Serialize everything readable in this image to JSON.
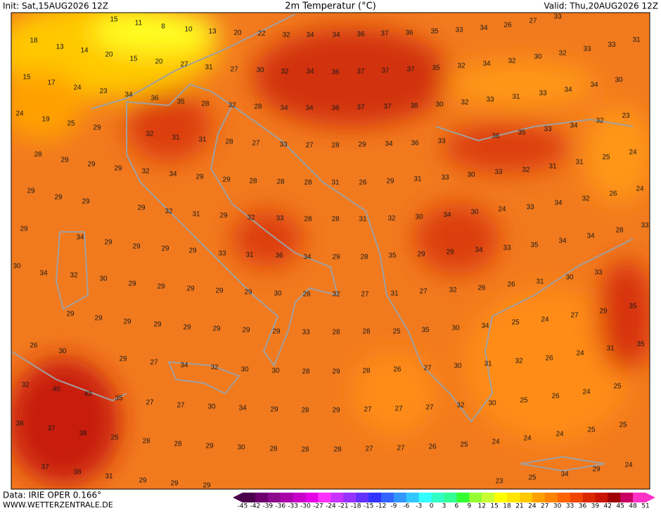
{
  "header": {
    "init": "Init: Sat,15AUG2026 12Z",
    "title": "2m Temperatur (°C)",
    "valid": "Valid: Thu,20AUG2026 12Z"
  },
  "map": {
    "labels": [
      15,
      11,
      8,
      10,
      13,
      20,
      22,
      32,
      34,
      34,
      36,
      37,
      36,
      35,
      33,
      34,
      26,
      27,
      33,
      18,
      13,
      14,
      20,
      15,
      20,
      27,
      31,
      27,
      30,
      32,
      34,
      36,
      37,
      37,
      37,
      35,
      32,
      34,
      32,
      30,
      32,
      33,
      33,
      31,
      15,
      17,
      24,
      23,
      34,
      36,
      35,
      28,
      32,
      28,
      34,
      34,
      36,
      37,
      37,
      38,
      30,
      32,
      33,
      31,
      33,
      34,
      34,
      30,
      24,
      19,
      25,
      29,
      32,
      31,
      31,
      28,
      27,
      33,
      27,
      28,
      29,
      34,
      36,
      33,
      36,
      35,
      33,
      34,
      32,
      23,
      28,
      29,
      29,
      29,
      32,
      34,
      29,
      29,
      28,
      28,
      28,
      31,
      26,
      29,
      31,
      33,
      30,
      33,
      32,
      31,
      31,
      25,
      24,
      29,
      29,
      29,
      29,
      32,
      31,
      29,
      32,
      33,
      28,
      28,
      31,
      32,
      30,
      34,
      30,
      24,
      33,
      34,
      32,
      26,
      24,
      29,
      34,
      29,
      29,
      29,
      29,
      33,
      31,
      36,
      34,
      29,
      28,
      35,
      29,
      29,
      34,
      33,
      35,
      34,
      34,
      28,
      33,
      30,
      34,
      32,
      30,
      29,
      29,
      29,
      29,
      29,
      30,
      28,
      32,
      27,
      31,
      27,
      32,
      26,
      26,
      31,
      30,
      33,
      29,
      29,
      29,
      29,
      29,
      29,
      29,
      29,
      33,
      28,
      28,
      25,
      35,
      30,
      34,
      25,
      24,
      27,
      29,
      35,
      26,
      30,
      29,
      27,
      34,
      32,
      30,
      30,
      28,
      29,
      28,
      26,
      27,
      30,
      31,
      32,
      26,
      24,
      31,
      35,
      32,
      40,
      43,
      35,
      27,
      27,
      30,
      34,
      29,
      28,
      29,
      27,
      27,
      27,
      32,
      30,
      25,
      26,
      24,
      25,
      38,
      37,
      38,
      25,
      28,
      28,
      29,
      30,
      28,
      28,
      28,
      27,
      27,
      26,
      25,
      24,
      24,
      24,
      25,
      25,
      37,
      38,
      31,
      29,
      29,
      29,
      23,
      25,
      34,
      29,
      24
    ]
  },
  "colorbar": {
    "ticks": [
      -45,
      -42,
      -39,
      -36,
      -33,
      -30,
      -27,
      -24,
      -21,
      -18,
      -15,
      -12,
      -9,
      -6,
      -3,
      0,
      3,
      6,
      9,
      12,
      15,
      18,
      21,
      24,
      27,
      30,
      33,
      36,
      39,
      42,
      45,
      48,
      51
    ],
    "colors": [
      "#4b004b",
      "#6e006e",
      "#8c0a8c",
      "#aa00aa",
      "#c800c8",
      "#e600e6",
      "#ff32ff",
      "#c832ff",
      "#9632ff",
      "#6432ff",
      "#3232ff",
      "#3264ff",
      "#3296ff",
      "#32c8ff",
      "#32ffff",
      "#32ffc8",
      "#32ff96",
      "#32ff32",
      "#96ff32",
      "#c8ff32",
      "#ffff00",
      "#ffe600",
      "#ffc800",
      "#ffa000",
      "#ff8200",
      "#ff6400",
      "#f04600",
      "#dc2800",
      "#c81400",
      "#a00000",
      "#c80064",
      "#ff32c8"
    ]
  },
  "footer": {
    "data": "Data: IRIE OPER 0.166°",
    "site": "WWW.WETTERZENTRALE.DE"
  }
}
